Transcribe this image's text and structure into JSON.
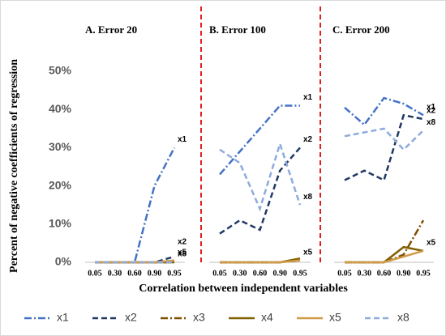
{
  "chart_data": [
    {
      "type": "line",
      "title": "A. Error 20",
      "ylabel": "Percent of negative coefficients of regression",
      "categories": [
        "0.05",
        "0.30",
        "0.60",
        "0.90",
        "0.95"
      ],
      "ylim": [
        0,
        50
      ],
      "yticks": [
        {
          "value": 0,
          "label": "0%"
        },
        {
          "value": 10,
          "label": "10%"
        },
        {
          "value": 20,
          "label": "20%"
        },
        {
          "value": 30,
          "label": "30%"
        },
        {
          "value": 40,
          "label": "40%"
        },
        {
          "value": 50,
          "label": "50%"
        }
      ],
      "end_labels": [
        "x1",
        "x2",
        "x5",
        "x8"
      ],
      "series": [
        {
          "name": "x1",
          "color": "#4472c4",
          "dash": "dashdot",
          "values": [
            0,
            0,
            0,
            20,
            30
          ]
        },
        {
          "name": "x2",
          "color": "#203864",
          "dash": "dash",
          "values": [
            0,
            0,
            0,
            0,
            1.5
          ]
        },
        {
          "name": "x3",
          "color": "#7f4f00",
          "dash": "dashdot",
          "values": [
            0,
            0,
            0,
            0,
            0
          ]
        },
        {
          "name": "x4",
          "color": "#806000",
          "dash": "solid",
          "values": [
            0,
            0,
            0,
            0,
            0
          ]
        },
        {
          "name": "x5",
          "color": "#d09a48",
          "dash": "solid",
          "values": [
            0,
            0,
            0,
            0,
            0.5
          ]
        },
        {
          "name": "x8",
          "color": "#8faadc",
          "dash": "dash",
          "values": [
            0,
            0,
            0,
            0,
            0
          ]
        }
      ]
    },
    {
      "type": "line",
      "title": "B. Error 100",
      "xlabel": "Correlation between independent variables",
      "categories": [
        "0.05",
        "0.30",
        "0.60",
        "0.90",
        "0.95"
      ],
      "ylim": [
        0,
        50
      ],
      "end_labels": [
        "x1",
        "x2",
        "x8",
        "x5"
      ],
      "series": [
        {
          "name": "x1",
          "color": "#4472c4",
          "dash": "dashdot",
          "values": [
            23,
            29,
            35,
            41,
            41
          ]
        },
        {
          "name": "x2",
          "color": "#203864",
          "dash": "dash",
          "values": [
            7.5,
            11,
            8.5,
            24,
            30
          ]
        },
        {
          "name": "x3",
          "color": "#7f4f00",
          "dash": "dashdot",
          "values": [
            0,
            0,
            0,
            0,
            0.5
          ]
        },
        {
          "name": "x4",
          "color": "#806000",
          "dash": "solid",
          "values": [
            0,
            0,
            0,
            0,
            1
          ]
        },
        {
          "name": "x5",
          "color": "#d09a48",
          "dash": "solid",
          "values": [
            0,
            0,
            0,
            0,
            0.5
          ]
        },
        {
          "name": "x8",
          "color": "#8faadc",
          "dash": "dash",
          "values": [
            29.5,
            26,
            14,
            31,
            15
          ]
        }
      ]
    },
    {
      "type": "line",
      "title": "C. Error 200",
      "categories": [
        "0.05",
        "0.30",
        "0.60",
        "0.90",
        "0.95"
      ],
      "ylim": [
        0,
        50
      ],
      "end_labels": [
        "x1",
        "x2",
        "x8",
        "x5"
      ],
      "series": [
        {
          "name": "x1",
          "color": "#4472c4",
          "dash": "dashdot",
          "values": [
            40.5,
            36,
            43,
            41.5,
            38.5
          ]
        },
        {
          "name": "x2",
          "color": "#203864",
          "dash": "dash",
          "values": [
            21.5,
            24,
            21.5,
            38.5,
            37.5
          ]
        },
        {
          "name": "x3",
          "color": "#7f4f00",
          "dash": "dashdot",
          "values": [
            0,
            0,
            0,
            2,
            11
          ]
        },
        {
          "name": "x4",
          "color": "#806000",
          "dash": "solid",
          "values": [
            0,
            0,
            0,
            4,
            3
          ]
        },
        {
          "name": "x5",
          "color": "#d09a48",
          "dash": "solid",
          "values": [
            0,
            0,
            0,
            1.5,
            3
          ]
        },
        {
          "name": "x8",
          "color": "#8faadc",
          "dash": "dash",
          "values": [
            33,
            34,
            35,
            29.5,
            34.5
          ]
        }
      ]
    }
  ]
}
